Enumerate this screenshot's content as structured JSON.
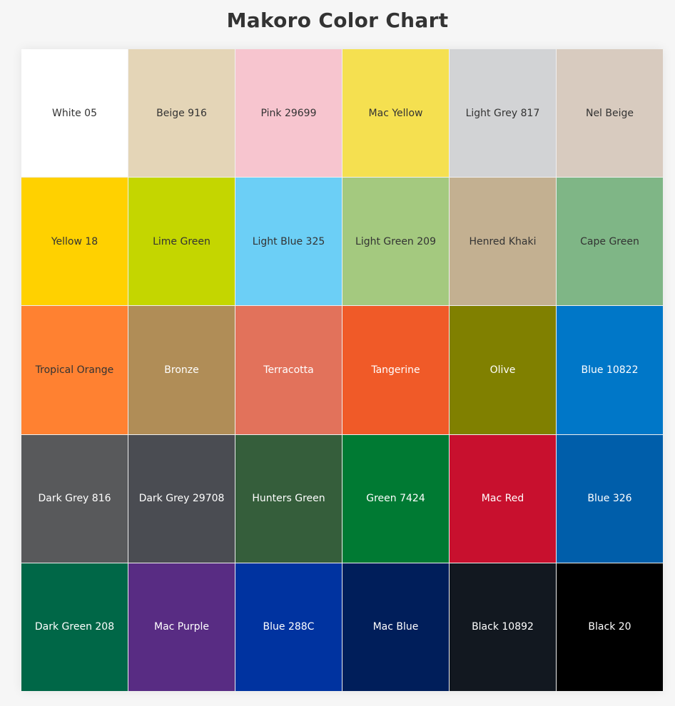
{
  "title": "Makoro Color Chart",
  "colors": [
    {
      "name": "White 05",
      "hex": "#ffffff",
      "text": "#333333"
    },
    {
      "name": "Beige 916",
      "hex": "#e4d5b7",
      "text": "#333333"
    },
    {
      "name": "Pink 29699",
      "hex": "#f7c5cf",
      "text": "#333333"
    },
    {
      "name": "Mac Yellow",
      "hex": "#f5e050",
      "text": "#333333"
    },
    {
      "name": "Light Grey 817",
      "hex": "#d2d3d5",
      "text": "#333333"
    },
    {
      "name": "Nel Beige",
      "hex": "#d8cbbf",
      "text": "#333333"
    },
    {
      "name": "Yellow 18",
      "hex": "#ffd100",
      "text": "#333333"
    },
    {
      "name": "Lime Green",
      "hex": "#c4d600",
      "text": "#333333"
    },
    {
      "name": "Light Blue 325",
      "hex": "#6ccff6",
      "text": "#333333"
    },
    {
      "name": "Light Green 209",
      "hex": "#a4c97f",
      "text": "#333333"
    },
    {
      "name": "Henred Khaki",
      "hex": "#c3b091",
      "text": "#333333"
    },
    {
      "name": "Cape Green",
      "hex": "#7fb686",
      "text": "#333333"
    },
    {
      "name": "Tropical Orange",
      "hex": "#ff8131",
      "text": "#333333"
    },
    {
      "name": "Bronze",
      "hex": "#b08d57",
      "text": "#ffffff"
    },
    {
      "name": "Terracotta",
      "hex": "#e2725b",
      "text": "#ffffff"
    },
    {
      "name": "Tangerine",
      "hex": "#f05a28",
      "text": "#ffffff"
    },
    {
      "name": "Olive",
      "hex": "#808000",
      "text": "#ffffff"
    },
    {
      "name": "Blue 10822",
      "hex": "#0077c8",
      "text": "#ffffff"
    },
    {
      "name": "Dark Grey 816",
      "hex": "#58595b",
      "text": "#ffffff"
    },
    {
      "name": "Dark Grey 29708",
      "hex": "#4a4c52",
      "text": "#ffffff"
    },
    {
      "name": "Hunters Green",
      "hex": "#355e3b",
      "text": "#ffffff"
    },
    {
      "name": "Green 7424",
      "hex": "#007a33",
      "text": "#ffffff"
    },
    {
      "name": "Mac Red",
      "hex": "#c8102e",
      "text": "#ffffff"
    },
    {
      "name": "Blue 326",
      "hex": "#005eaa",
      "text": "#ffffff"
    },
    {
      "name": "Dark Green 208",
      "hex": "#006747",
      "text": "#ffffff"
    },
    {
      "name": "Mac Purple",
      "hex": "#582c83",
      "text": "#ffffff"
    },
    {
      "name": "Blue 288C",
      "hex": "#0033a0",
      "text": "#ffffff"
    },
    {
      "name": "Mac Blue",
      "hex": "#001e5a",
      "text": "#ffffff"
    },
    {
      "name": "Black 10892",
      "hex": "#121820",
      "text": "#ffffff"
    },
    {
      "name": "Black 20",
      "hex": "#000000",
      "text": "#ffffff"
    }
  ]
}
